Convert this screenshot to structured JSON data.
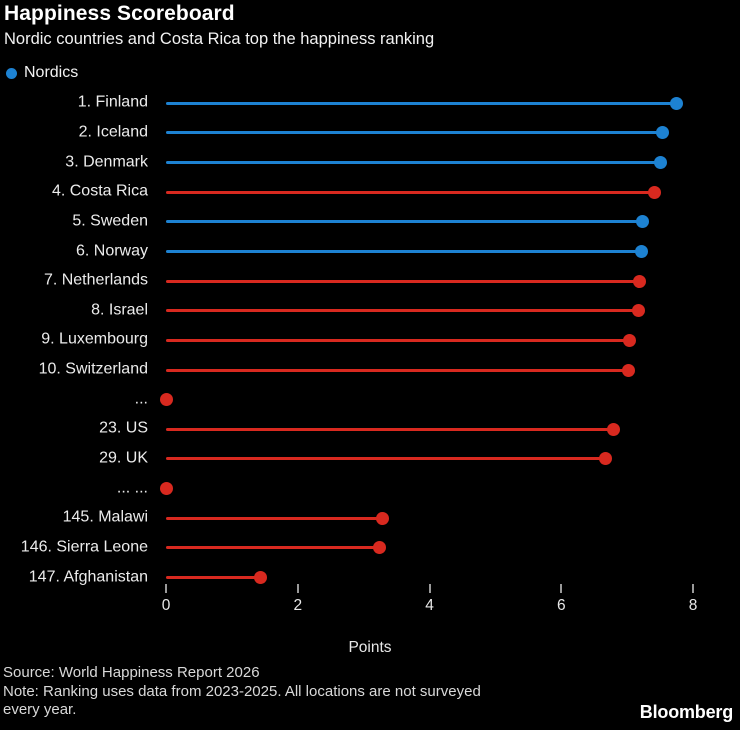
{
  "header": {
    "title": "Happiness Scoreboard",
    "subtitle": "Nordic countries and Costa Rica top the happiness ranking"
  },
  "legend": {
    "label": "Nordics"
  },
  "colors": {
    "background": "#000000",
    "nordic_blue": "#1d82d2",
    "default_red": "#d8291f",
    "title_text": "#ffffff",
    "label_text": "#ececec",
    "axis_text": "#e8e8e8",
    "tick_mark": "#9a9a9a",
    "footer_text": "#d9d9d9"
  },
  "chart_data": {
    "type": "bar",
    "style": "lollipop",
    "orientation": "horizontal",
    "title": "Happiness Scoreboard",
    "subtitle": "Nordic countries and Costa Rica top the happiness ranking",
    "xlabel": "Points",
    "xlim": [
      0,
      8
    ],
    "xticks": [
      0,
      2,
      4,
      6,
      8
    ],
    "grid": false,
    "legend_position": "top-left",
    "legend_entries": [
      {
        "label": "Nordics",
        "group": "nordic",
        "color": "#1d82d2"
      }
    ],
    "categories": [
      "1. Finland",
      "2. Iceland",
      "3. Denmark",
      "4. Costa Rica",
      "5. Sweden",
      "6. Norway",
      "7. Netherlands",
      "8. Israel",
      "9. Luxembourg",
      "10. Switzerland",
      "...",
      "23. US",
      "29. UK",
      "... ...",
      "145. Malawi",
      "146. Sierra Leone",
      "147. Afghanistan"
    ],
    "values": [
      7.75,
      7.53,
      7.51,
      7.41,
      7.24,
      7.22,
      7.19,
      7.17,
      7.04,
      7.02,
      0,
      6.8,
      6.67,
      0,
      3.28,
      3.24,
      1.44
    ],
    "groups": [
      "nordic",
      "nordic",
      "nordic",
      "other",
      "nordic",
      "nordic",
      "other",
      "other",
      "other",
      "other",
      "other",
      "other",
      "other",
      "other",
      "other",
      "other",
      "other"
    ]
  },
  "axis": {
    "xlabel": "Points"
  },
  "footer": {
    "lines": [
      "Source: World Happiness Report 2026",
      "Note: Ranking uses data from 2023-2025. All locations are not surveyed",
      "every year."
    ],
    "brand": "Bloomberg"
  }
}
